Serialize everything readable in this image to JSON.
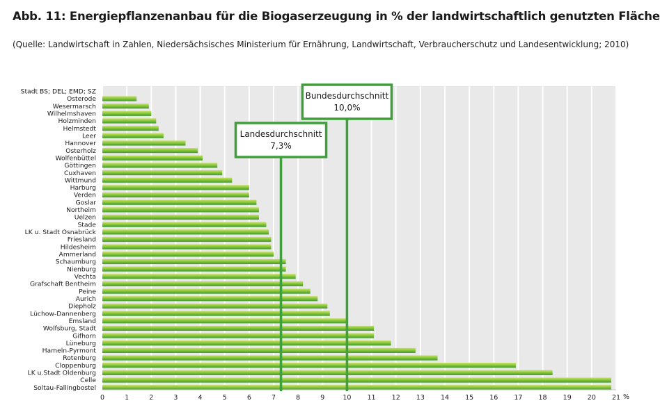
{
  "title": "Abb. 11: Energiepflanzenanbau für die Biogaserzeugung in % der landwirtschaftlich genutzten Fläche",
  "subtitle": "(Quelle: Landwirtschaft in Zahlen, Niedersächsisches Ministerium für Ernährung, Landwirtschaft, Verbraucherschutz und Landesentwicklung; 2010)",
  "chart_data": {
    "type": "bar",
    "orientation": "horizontal",
    "categories": [
      "Stadt BS; DEL; EMD; SZ",
      "Osterode",
      "Wesermarsch",
      "Wilhelmshaven",
      "Holzminden",
      "Helmstedt",
      "Leer",
      "Hannover",
      "Osterholz",
      "Wolfenbüttel",
      "Göttingen",
      "Cuxhaven",
      "Wittmund",
      "Harburg",
      "Verden",
      "Goslar",
      "Northeim",
      "Uelzen",
      "Stade",
      "LK u. Stadt Osnabrück",
      "Friesland",
      "Hildesheim",
      "Ammerland",
      "Schaumburg",
      "Nienburg",
      "Vechta",
      "Grafschaft Bentheim",
      "Peine",
      "Aurich",
      "Diepholz",
      "Lüchow-Dannenberg",
      "Emsland",
      "Wolfsburg, Stadt",
      "Gifhorn",
      "Lüneburg",
      "Hameln-Pyrmont",
      "Rotenburg",
      "Cloppenburg",
      "LK u.Stadt Oldenburg",
      "Celle",
      "Soltau-Fallingbostel"
    ],
    "values": [
      0,
      1.4,
      1.9,
      2.0,
      2.2,
      2.3,
      2.5,
      3.4,
      3.9,
      4.1,
      4.7,
      4.9,
      5.3,
      6.0,
      6.0,
      6.3,
      6.4,
      6.4,
      6.7,
      6.8,
      6.9,
      6.9,
      7.0,
      7.5,
      7.5,
      7.9,
      8.2,
      8.5,
      8.8,
      9.2,
      9.3,
      10.0,
      11.1,
      11.1,
      11.8,
      12.8,
      13.7,
      16.9,
      18.4,
      20.8,
      20.8
    ],
    "xlim": [
      0,
      21
    ],
    "xticks": [
      "0",
      "1",
      "2",
      "3",
      "4",
      "5",
      "6",
      "7",
      "8",
      "9",
      "10",
      "11",
      "12",
      "13",
      "14",
      "15",
      "16",
      "17",
      "18",
      "19",
      "20",
      "21"
    ],
    "xunit": "%",
    "grid": true,
    "references": [
      {
        "label": "Landesdurchschnitt",
        "value_text": "7,3%",
        "value": 7.3
      },
      {
        "label": "Bundesdurchschnitt",
        "value_text": "10,0%",
        "value": 10.0
      }
    ],
    "colors": {
      "bar_light": "#c9e26a",
      "bar_mid": "#8cc83c",
      "bar_dark": "#3f9a2e",
      "reference": "#3f9f3a",
      "grid_bg": "#e9e9e9",
      "grid_line": "#ffffff"
    }
  }
}
